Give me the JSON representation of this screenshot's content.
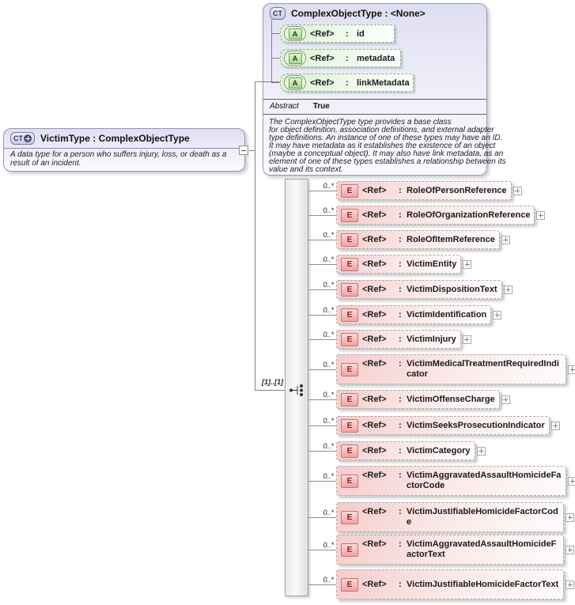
{
  "diagram": {
    "base_type": {
      "kind": "CT",
      "title": "ComplexObjectType : <None>",
      "attributes": [
        {
          "kind": "A",
          "ref": "<Ref>",
          "sep": ":",
          "name": "id"
        },
        {
          "kind": "A",
          "ref": "<Ref>",
          "sep": ":",
          "name": "metadata"
        },
        {
          "kind": "A",
          "ref": "<Ref>",
          "sep": ":",
          "name": "linkMetadata"
        }
      ],
      "abstract_label": "Abstract",
      "abstract_value": "True",
      "description_lines": [
        "The ComplexObjectType type provides a base class",
        "for object definition, association definitions, and external adapter",
        "type definitions. An instance of one of these types may have an ID.",
        "It may have metadata as it establishes the existence of an object",
        "(maybe a conceptual object). It may also have link metadata, as an",
        "element of one of these types establishes a relationship between its",
        "value and its context."
      ]
    },
    "derived_type": {
      "kind": "CT",
      "title": "VictimType : ComplexObjectType",
      "description": "A data type for a person who suffers injury, loss, or death as a result of an incident."
    },
    "compositor": {
      "cardinality": "[1]..[1]"
    },
    "elements": [
      {
        "kind": "E",
        "cardinality": "0..*",
        "ref": "<Ref>",
        "sep": ":",
        "name": "RoleOfPersonReference"
      },
      {
        "kind": "E",
        "cardinality": "0..*",
        "ref": "<Ref>",
        "sep": ":",
        "name": "RoleOfOrganizationReference"
      },
      {
        "kind": "E",
        "cardinality": "0..*",
        "ref": "<Ref>",
        "sep": ":",
        "name": "RoleOfItemReference"
      },
      {
        "kind": "E",
        "cardinality": "0..*",
        "ref": "<Ref>",
        "sep": ":",
        "name": "VictimEntity"
      },
      {
        "kind": "E",
        "cardinality": "0..*",
        "ref": "<Ref>",
        "sep": ":",
        "name": "VictimDispositionText"
      },
      {
        "kind": "E",
        "cardinality": "0..*",
        "ref": "<Ref>",
        "sep": ":",
        "name": "VictimIdentification"
      },
      {
        "kind": "E",
        "cardinality": "0..*",
        "ref": "<Ref>",
        "sep": ":",
        "name": "VictimInjury"
      },
      {
        "kind": "E",
        "cardinality": "0..*",
        "ref": "<Ref>",
        "sep": ":",
        "name": "VictimMedicalTreatmentRequiredIndicator"
      },
      {
        "kind": "E",
        "cardinality": "0..*",
        "ref": "<Ref>",
        "sep": ":",
        "name": "VictimOffenseCharge"
      },
      {
        "kind": "E",
        "cardinality": "0..*",
        "ref": "<Ref>",
        "sep": ":",
        "name": "VictimSeeksProsecutionIndicator"
      },
      {
        "kind": "E",
        "cardinality": "0..*",
        "ref": "<Ref>",
        "sep": ":",
        "name": "VictimCategory"
      },
      {
        "kind": "E",
        "cardinality": "0..*",
        "ref": "<Ref>",
        "sep": ":",
        "name": "VictimAggravatedAssaultHomicideFactorCode"
      },
      {
        "kind": "E",
        "cardinality": "0..*",
        "ref": "<Ref>",
        "sep": ":",
        "name": "VictimJustifiableHomicideFactorCode"
      },
      {
        "kind": "E",
        "cardinality": "0..*",
        "ref": "<Ref>",
        "sep": ":",
        "name": "VictimAggravatedAssaultHomicideFactorText"
      },
      {
        "kind": "E",
        "cardinality": "0..*",
        "ref": "<Ref>",
        "sep": ":",
        "name": "VictimJustifiableHomicideFactorText"
      }
    ],
    "colors": {
      "type_box_fill": "#dedef2",
      "attribute_fill": "#d9f2d0",
      "attribute_icon": "#a9d890",
      "element_fill": "#f6cccc",
      "element_icon": "#f0a2a2",
      "connector": "#808080"
    }
  }
}
